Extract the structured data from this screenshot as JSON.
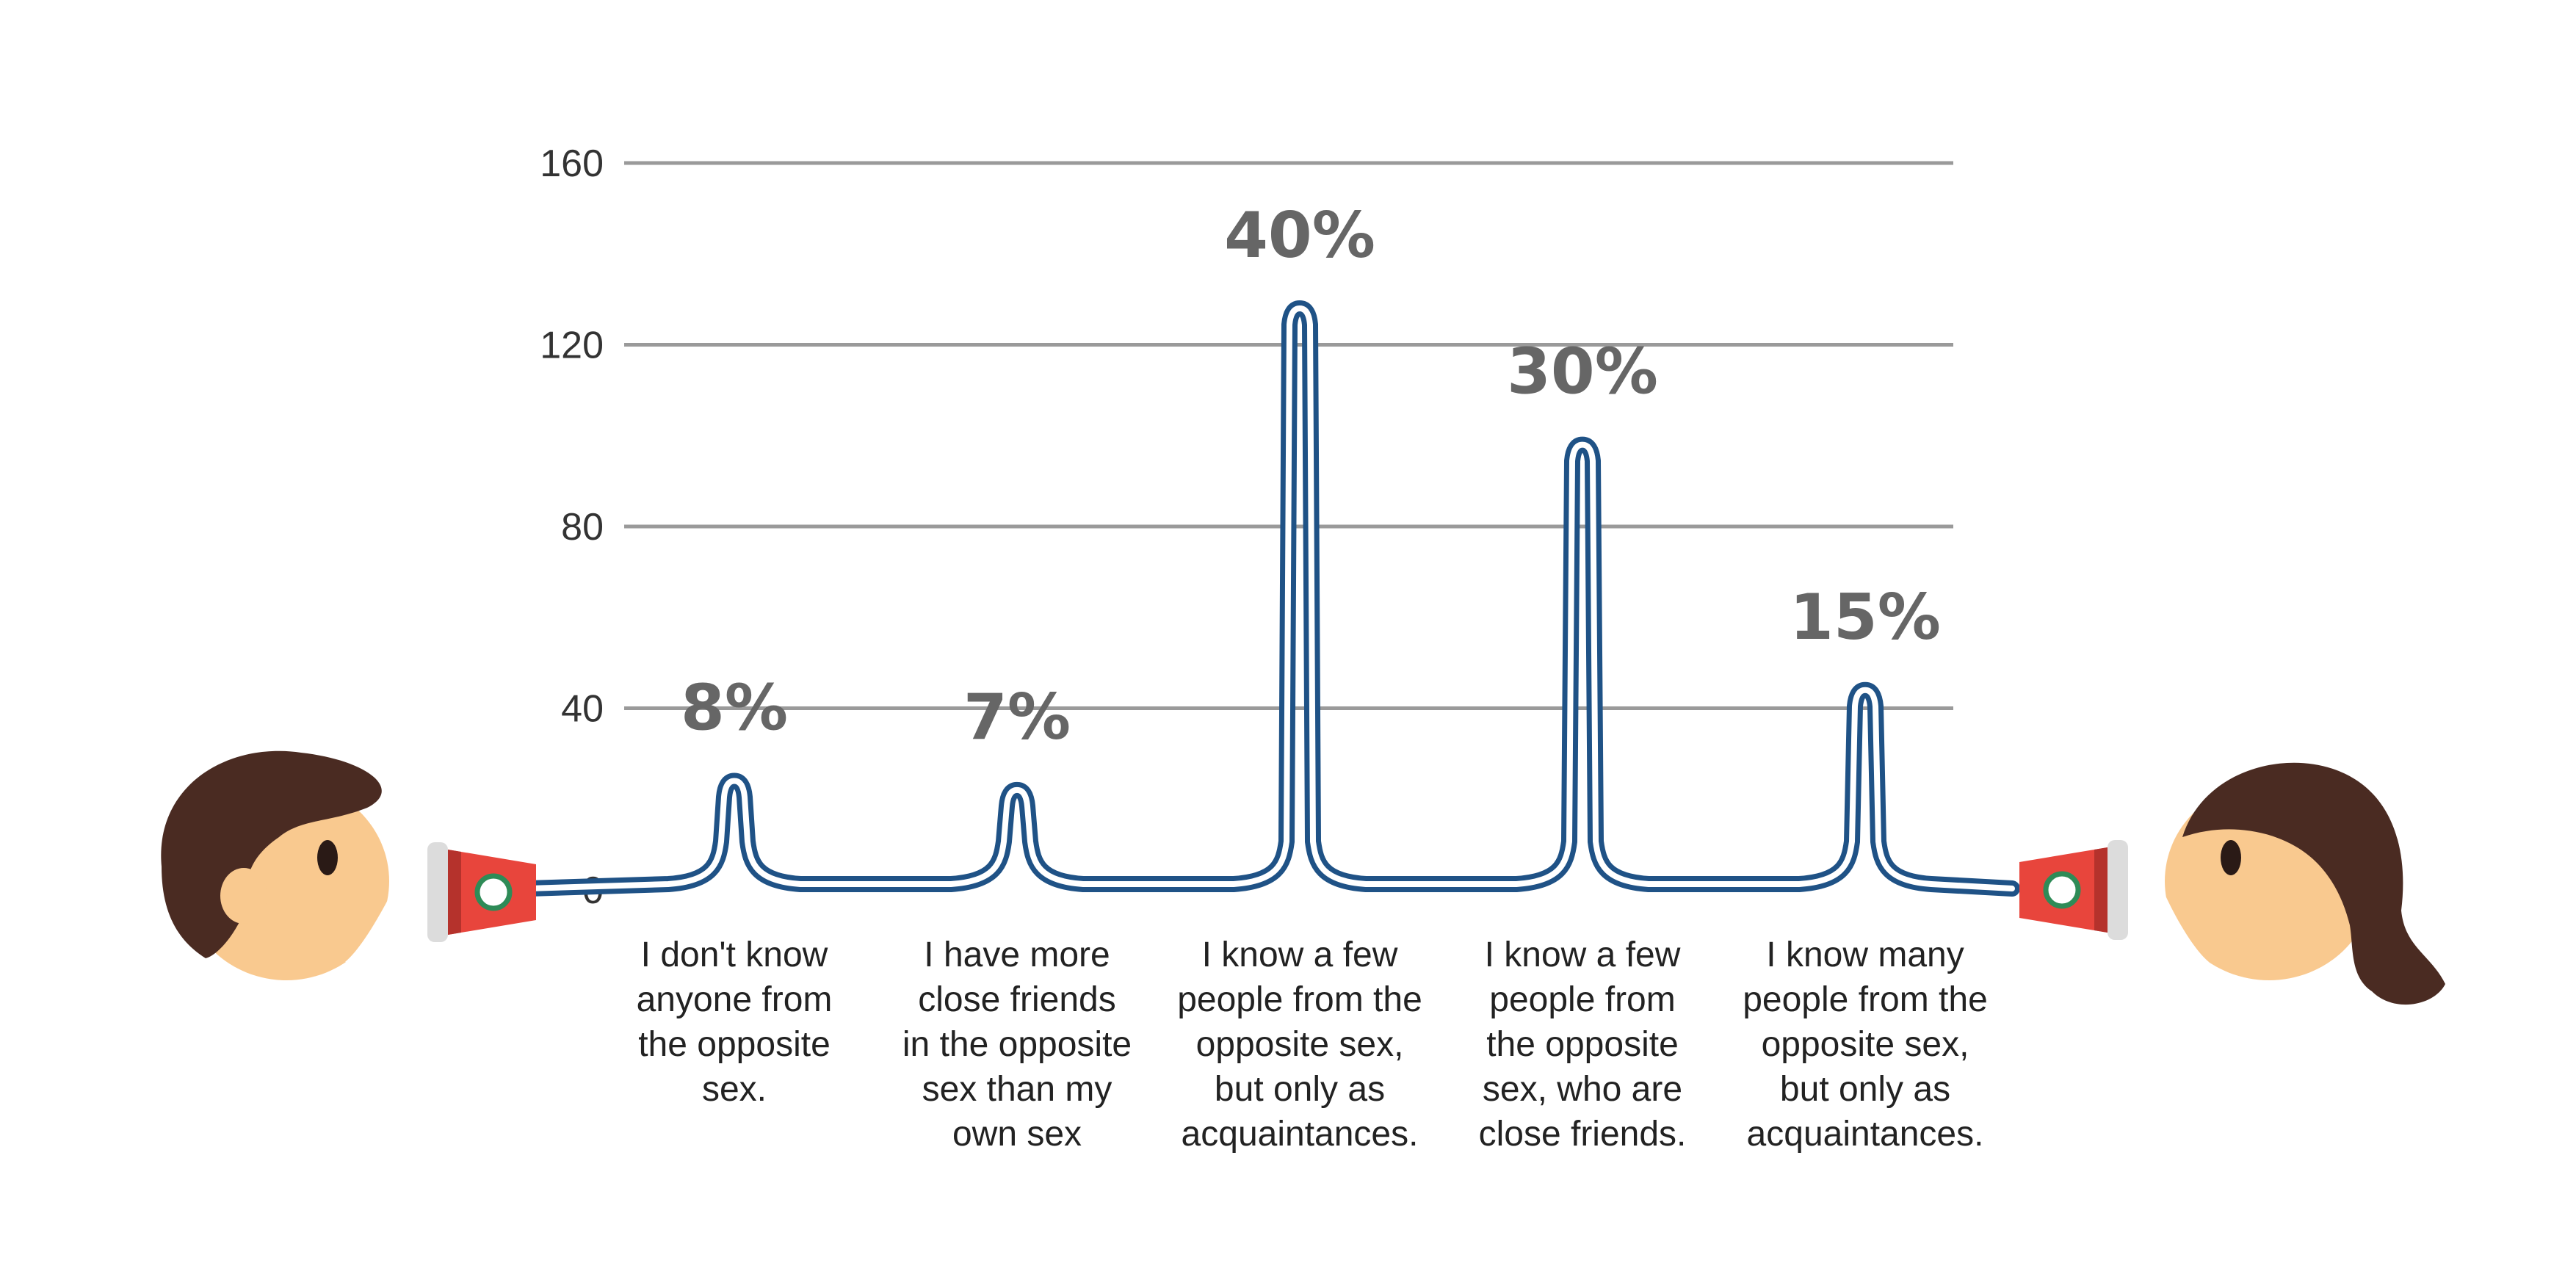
{
  "chart_data": {
    "type": "line",
    "style": "spike line drawn as a cord between two tin-can telephones",
    "title": "",
    "xlabel": "",
    "ylabel": "",
    "ylim": [
      0,
      160
    ],
    "yticks": [
      "160",
      "120",
      "80",
      "40",
      "0"
    ],
    "ytick_values": [
      160,
      120,
      80,
      40,
      0
    ],
    "grid": true,
    "categories": [
      {
        "lines": [
          "I don't know",
          "anyone from",
          "the opposite",
          "sex."
        ]
      },
      {
        "lines": [
          "I have more",
          "close friends",
          "in the opposite",
          "sex than my",
          "own sex"
        ]
      },
      {
        "lines": [
          "I know a few",
          "people from the",
          "opposite sex,",
          "but only as",
          "acquaintances."
        ]
      },
      {
        "lines": [
          "I know a few",
          "people from",
          "the  opposite",
          "sex, who are",
          "close friends."
        ]
      },
      {
        "lines": [
          "I know many",
          "people from the",
          "opposite sex,",
          "but only as",
          "acquaintances."
        ]
      }
    ],
    "values": [
      24,
      22,
      128,
      98,
      44
    ],
    "percent_labels": [
      "8%",
      "7%",
      "40%",
      "30%",
      "15%"
    ],
    "colors": {
      "line": "#1f5286",
      "grid": "#9a9a9a",
      "percent_text": "#666666",
      "can_red": "#e8453c",
      "can_dark_red": "#b5322c",
      "can_rim": "#dcdcdc",
      "can_hole": "#2e8b57",
      "skin": "#f9c98f",
      "hair": "#4a2b22",
      "eye": "#2a1a16"
    }
  },
  "icons": {
    "left": "boy-head-icon",
    "right": "girl-head-icon",
    "left_can": "tin-can-phone-icon",
    "right_can": "tin-can-phone-icon"
  }
}
